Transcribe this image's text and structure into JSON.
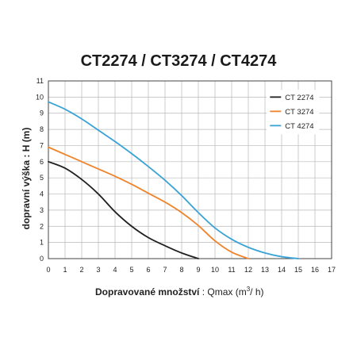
{
  "chart_data": {
    "type": "line",
    "title": "CT2274 / CT3274 / CT4274",
    "ylabel_main": "dopravní výška",
    "ylabel_unit": ": H (m)",
    "xlabel_main": "Dopravované množství",
    "xlabel_unit_pre": ": Qmax (m",
    "xlabel_unit_sup": "3",
    "xlabel_unit_post": "/ h)",
    "xlim": [
      0,
      17
    ],
    "ylim": [
      0,
      11
    ],
    "xticks": [
      "0",
      "1",
      "2",
      "3",
      "4",
      "5",
      "6",
      "7",
      "8",
      "9",
      "10",
      "11",
      "12",
      "13",
      "14",
      "15",
      "16",
      "17"
    ],
    "yticks": [
      "0",
      "1",
      "2",
      "3",
      "4",
      "5",
      "6",
      "7",
      "8",
      "9",
      "10",
      "11"
    ],
    "grid": true,
    "legend_position": "top-right",
    "series": [
      {
        "name": "CT 2274",
        "color": "#231f20",
        "x": [
          0,
          1,
          2,
          3,
          4,
          5,
          6,
          7,
          8,
          9
        ],
        "y": [
          6.0,
          5.6,
          4.9,
          4.0,
          2.9,
          2.0,
          1.3,
          0.8,
          0.35,
          0.0
        ]
      },
      {
        "name": "CT 3274",
        "color": "#f0832a",
        "x": [
          0,
          1,
          2,
          3,
          4,
          5,
          6,
          7,
          8,
          9,
          10,
          11,
          12
        ],
        "y": [
          6.9,
          6.45,
          6.0,
          5.55,
          5.1,
          4.6,
          4.05,
          3.5,
          2.85,
          2.05,
          1.1,
          0.4,
          0.0
        ]
      },
      {
        "name": "CT 4274",
        "color": "#3aa3d6",
        "x": [
          0,
          1,
          2,
          3,
          4,
          5,
          6,
          7,
          8,
          9,
          10,
          11,
          12,
          13,
          14,
          15
        ],
        "y": [
          9.7,
          9.25,
          8.65,
          7.95,
          7.25,
          6.5,
          5.7,
          4.85,
          3.9,
          2.85,
          1.9,
          1.2,
          0.7,
          0.35,
          0.12,
          0.0
        ]
      }
    ]
  }
}
